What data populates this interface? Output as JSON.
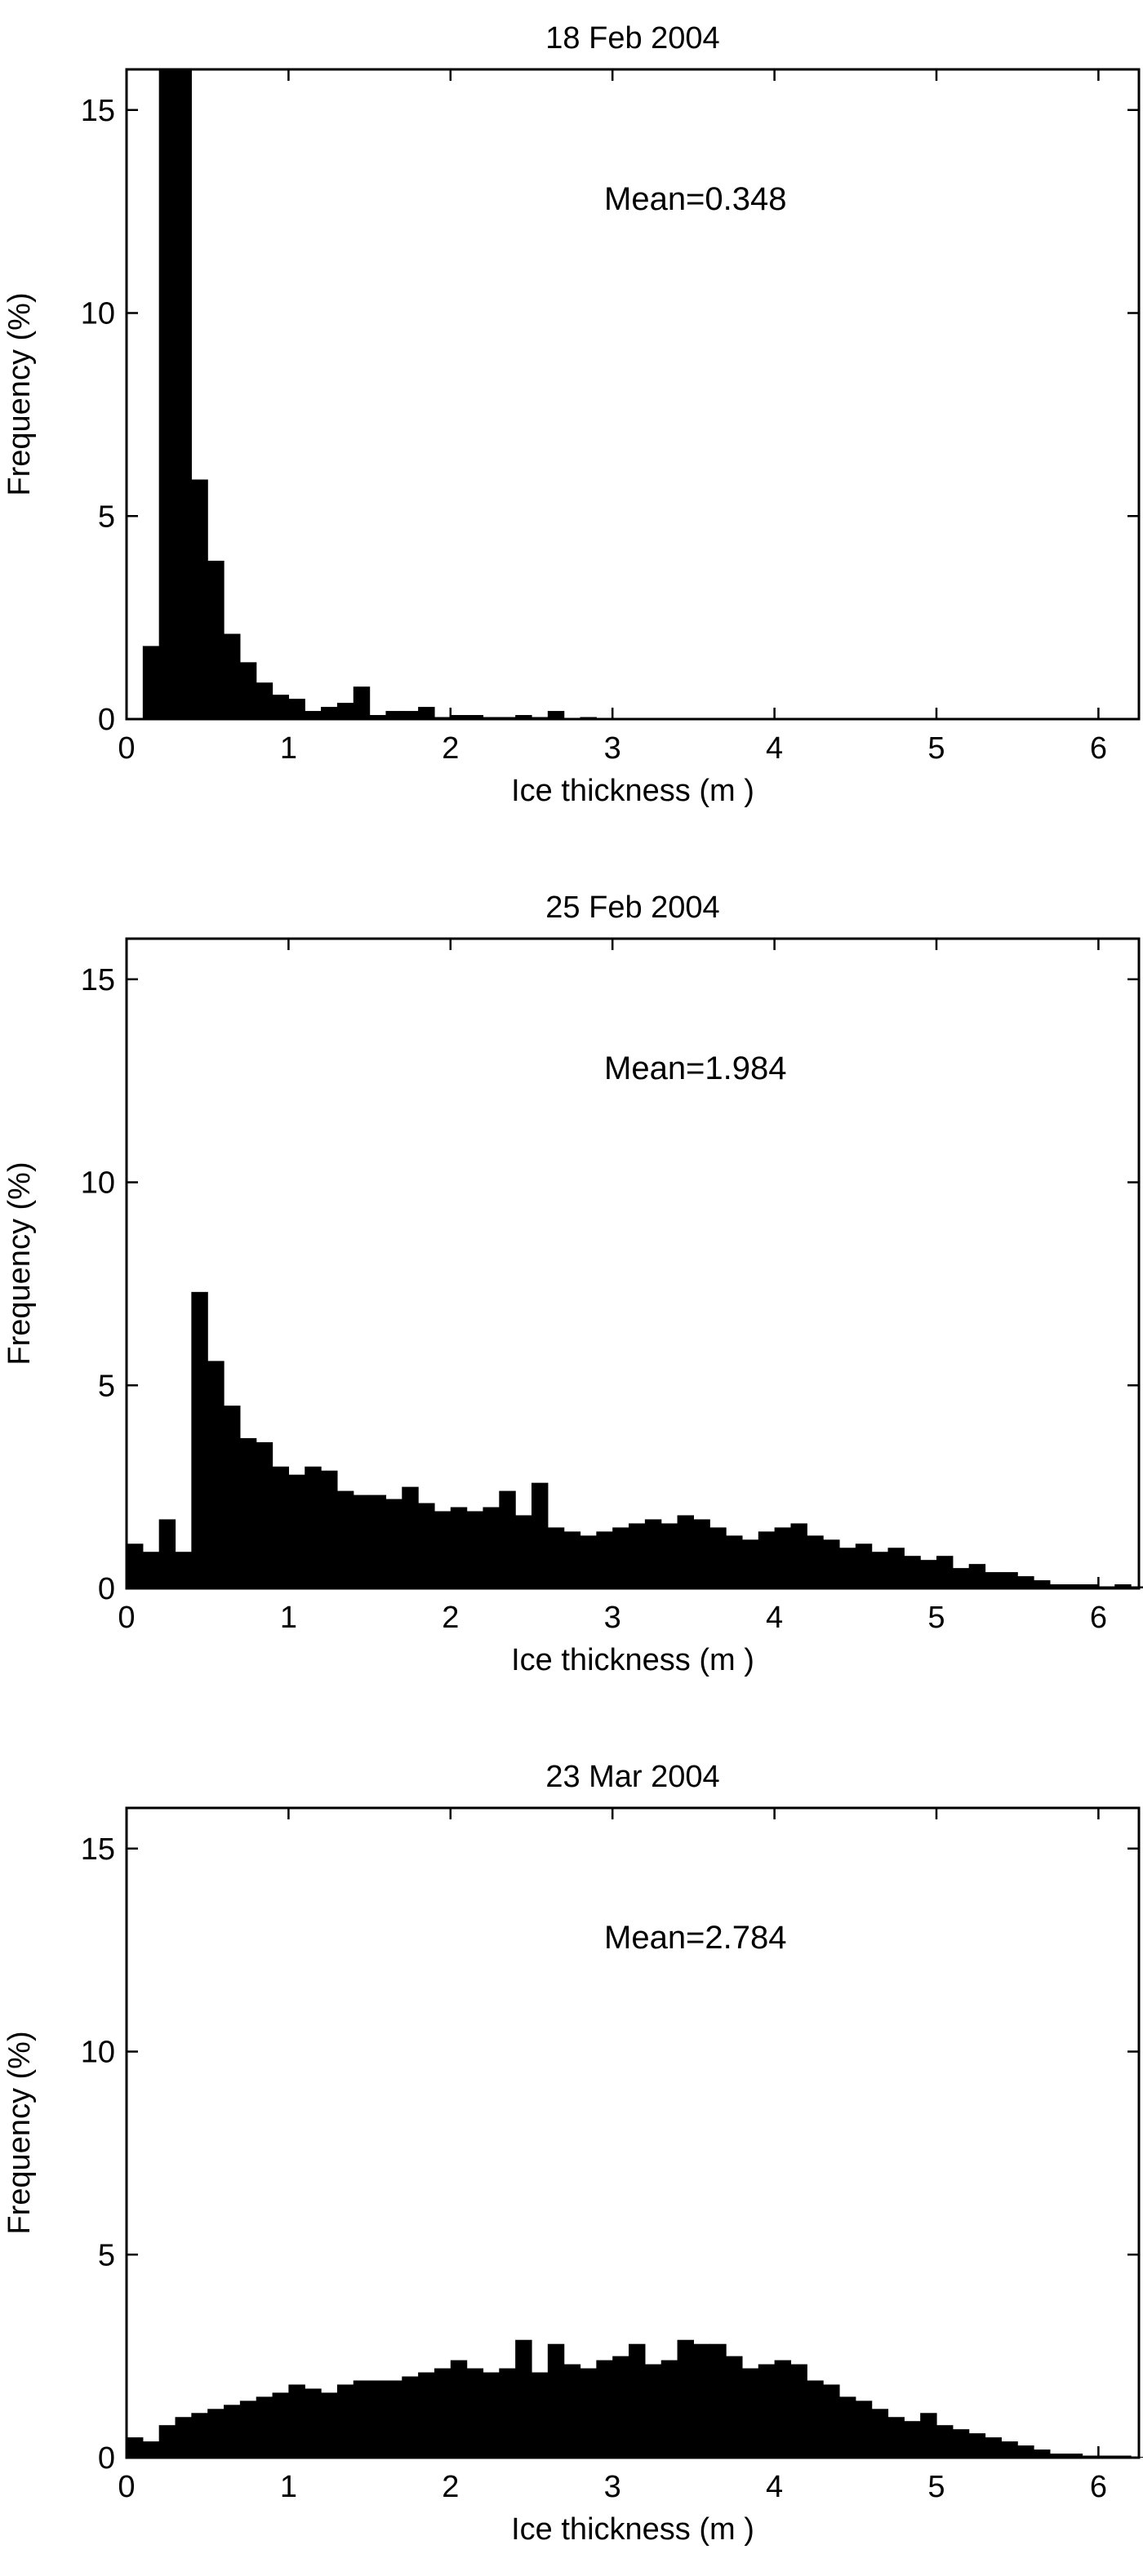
{
  "chart_data": [
    {
      "type": "bar",
      "title": "18 Feb 2004",
      "annotation": "Mean=0.348",
      "xlabel": "Ice thickness (m )",
      "ylabel": "Frequency (%)",
      "xlim": [
        0,
        6.25
      ],
      "ylim": [
        0,
        16
      ],
      "xticks": [
        "0",
        "1",
        "2",
        "3",
        "4",
        "5",
        "6"
      ],
      "yticks": [
        "0",
        "5",
        "10",
        "15"
      ],
      "bin_width": 0.1,
      "values": [
        0,
        1.8,
        16,
        16,
        5.9,
        3.9,
        2.1,
        1.4,
        0.9,
        0.6,
        0.5,
        0.2,
        0.3,
        0.4,
        0.8,
        0.1,
        0.2,
        0.2,
        0.3,
        0.05,
        0.1,
        0.1,
        0.05,
        0.05,
        0.1,
        0.05,
        0.2,
        0,
        0.05,
        0,
        0,
        0,
        0,
        0,
        0,
        0,
        0,
        0,
        0,
        0,
        0,
        0,
        0,
        0,
        0,
        0,
        0,
        0,
        0,
        0,
        0,
        0,
        0,
        0,
        0,
        0,
        0,
        0,
        0,
        0,
        0,
        0,
        0
      ],
      "bar_color": "#000000"
    },
    {
      "type": "bar",
      "title": "25 Feb 2004",
      "annotation": "Mean=1.984",
      "xlabel": "Ice thickness (m )",
      "ylabel": "Frequency (%)",
      "xlim": [
        0,
        6.25
      ],
      "ylim": [
        0,
        16
      ],
      "xticks": [
        "0",
        "1",
        "2",
        "3",
        "4",
        "5",
        "6"
      ],
      "yticks": [
        "0",
        "5",
        "10",
        "15"
      ],
      "bin_width": 0.1,
      "values": [
        1.1,
        0.9,
        1.7,
        0.9,
        7.3,
        5.6,
        4.5,
        3.7,
        3.6,
        3.0,
        2.8,
        3.0,
        2.9,
        2.4,
        2.3,
        2.3,
        2.2,
        2.5,
        2.1,
        1.9,
        2.0,
        1.9,
        2.0,
        2.4,
        1.8,
        2.6,
        1.5,
        1.4,
        1.3,
        1.4,
        1.5,
        1.6,
        1.7,
        1.6,
        1.8,
        1.7,
        1.5,
        1.3,
        1.2,
        1.4,
        1.5,
        1.6,
        1.3,
        1.2,
        1.0,
        1.1,
        0.9,
        1.0,
        0.8,
        0.7,
        0.8,
        0.5,
        0.6,
        0.4,
        0.4,
        0.3,
        0.2,
        0.1,
        0.1,
        0.1,
        0.05,
        0.1,
        0.05
      ],
      "bar_color": "#000000"
    },
    {
      "type": "bar",
      "title": "23 Mar 2004",
      "annotation": "Mean=2.784",
      "xlabel": "Ice thickness (m )",
      "ylabel": "Frequency (%)",
      "xlim": [
        0,
        6.25
      ],
      "ylim": [
        0,
        16
      ],
      "xticks": [
        "0",
        "1",
        "2",
        "3",
        "4",
        "5",
        "6"
      ],
      "yticks": [
        "0",
        "5",
        "10",
        "15"
      ],
      "bin_width": 0.1,
      "values": [
        0.5,
        0.4,
        0.8,
        1.0,
        1.1,
        1.2,
        1.3,
        1.4,
        1.5,
        1.6,
        1.8,
        1.7,
        1.6,
        1.8,
        1.9,
        1.9,
        1.9,
        2.0,
        2.1,
        2.2,
        2.4,
        2.2,
        2.1,
        2.2,
        2.9,
        2.1,
        2.8,
        2.3,
        2.2,
        2.4,
        2.5,
        2.8,
        2.3,
        2.4,
        2.9,
        2.8,
        2.8,
        2.5,
        2.2,
        2.3,
        2.4,
        2.3,
        1.9,
        1.8,
        1.5,
        1.4,
        1.2,
        1.0,
        0.9,
        1.1,
        0.8,
        0.7,
        0.6,
        0.5,
        0.4,
        0.3,
        0.2,
        0.1,
        0.1,
        0.05,
        0.05,
        0.05,
        0.02
      ],
      "bar_color": "#000000"
    }
  ]
}
